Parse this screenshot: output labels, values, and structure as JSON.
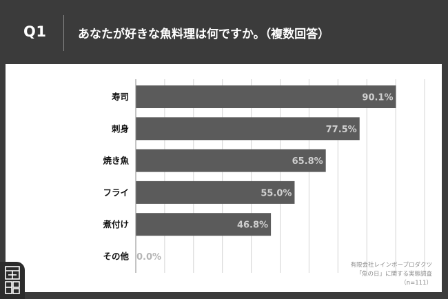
{
  "header": {
    "question_label": "Q1",
    "title": "あなたが好きな魚料理は何ですか。（複数回答）"
  },
  "chart_data": {
    "type": "bar",
    "orientation": "horizontal",
    "categories": [
      "寿司",
      "刺身",
      "焼き魚",
      "フライ",
      "煮付け",
      "その他"
    ],
    "values": [
      90.1,
      77.5,
      65.8,
      55.0,
      46.8,
      0.0
    ],
    "value_labels": [
      "90.1%",
      "77.5%",
      "65.8%",
      "55.0%",
      "46.8%",
      "0.0%"
    ],
    "xlim": [
      0,
      100
    ],
    "grid": true,
    "bar_color": "#5b5b5b"
  },
  "source": {
    "line1": "有限会社レインボープロダクツ",
    "line2": "「魚の日」に関する実態調査",
    "line3": "（n=111）"
  },
  "logo": {
    "icon": "brand-logo-icon"
  },
  "colors": {
    "background": "#3b3b3b",
    "panel": "#ffffff",
    "bar": "#5b5b5b",
    "bar_label": "#cfcfcf",
    "zero_label": "#b5b5b5",
    "grid": "#d4d4d4"
  }
}
